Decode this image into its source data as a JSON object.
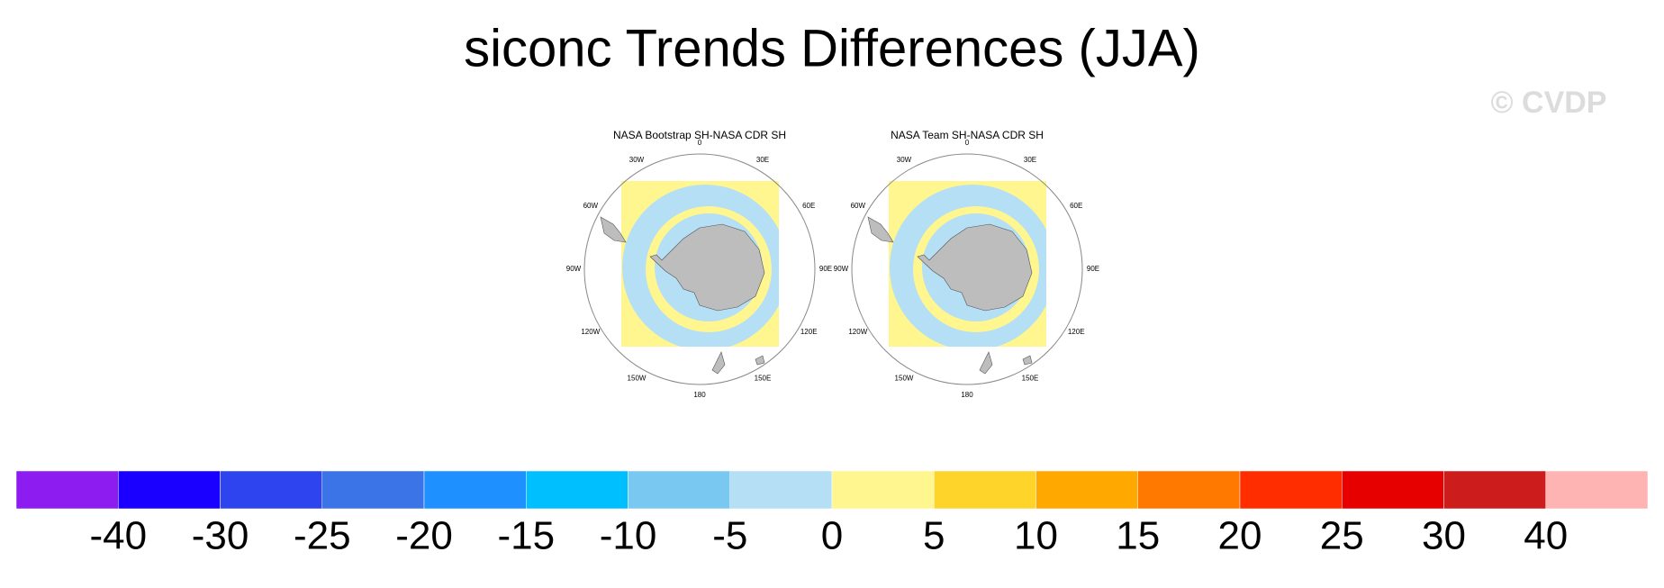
{
  "title": "siconc Trends Differences (JJA)",
  "watermark": "© CVDP",
  "panels": [
    {
      "title": "NASA Bootstrap SH-NASA CDR SH",
      "lon_labels": [
        "0",
        "30E",
        "60E",
        "90E",
        "120E",
        "150E",
        "180",
        "150W",
        "120W",
        "90W",
        "60W",
        "30W"
      ]
    },
    {
      "title": "NASA Team SH-NASA CDR SH",
      "lon_labels": [
        "0",
        "30E",
        "60E",
        "90E",
        "120E",
        "150E",
        "180",
        "150W",
        "120W",
        "90W",
        "60W",
        "30W"
      ]
    }
  ],
  "colorbar": {
    "levels": [
      -40,
      -30,
      -25,
      -20,
      -15,
      -10,
      -5,
      0,
      5,
      10,
      15,
      20,
      25,
      30,
      40
    ],
    "colors": [
      "#8c1cf0",
      "#1a00ff",
      "#2d44ee",
      "#3a74e6",
      "#1e90ff",
      "#00bfff",
      "#78c8f2",
      "#b4dff5",
      "#fff68f",
      "#ffd42a",
      "#ffa800",
      "#ff7800",
      "#ff2d00",
      "#e60000",
      "#cd1c1c",
      "#ffb4b4"
    ]
  }
}
